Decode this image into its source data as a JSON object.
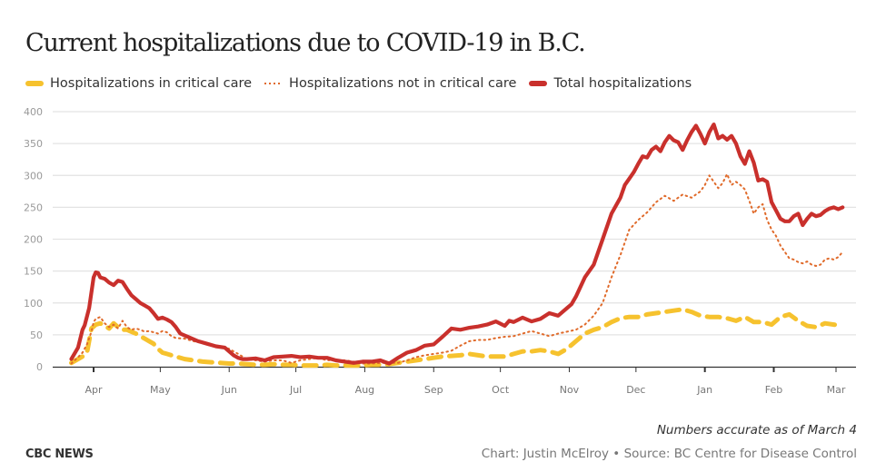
{
  "header": {
    "title": "Current hospitalizations due to COVID-19 in B.C."
  },
  "legend": [
    {
      "label": "Hospitalizations in critical care",
      "color": "#f6c22e",
      "style": "dashed"
    },
    {
      "label": "Hospitalizations not in critical care",
      "color": "#e06a2a",
      "style": "dotted"
    },
    {
      "label": "Total hospitalizations",
      "color": "#c9302c",
      "style": "solid"
    }
  ],
  "footer": {
    "note": "Numbers accurate as of March 4",
    "brand": "CBC NEWS",
    "credit": "Chart: Justin McElroy • Source: BC Centre for Disease Control"
  },
  "chart_data": {
    "type": "line",
    "title": "Current hospitalizations due to COVID-19 in B.C.",
    "xlabel": "",
    "ylabel": "",
    "x_unit": "days since 2020-03-01",
    "x_range": [
      21,
      368
    ],
    "ylim": [
      0,
      400
    ],
    "yticks": [
      0,
      50,
      100,
      150,
      200,
      250,
      300,
      350,
      400
    ],
    "xticks": [
      {
        "label": "Apr",
        "day": 31
      },
      {
        "label": "May",
        "day": 61
      },
      {
        "label": "Jun",
        "day": 92
      },
      {
        "label": "Jul",
        "day": 122
      },
      {
        "label": "Aug",
        "day": 153
      },
      {
        "label": "Sep",
        "day": 184
      },
      {
        "label": "Oct",
        "day": 214
      },
      {
        "label": "Nov",
        "day": 245
      },
      {
        "label": "Dec",
        "day": 275
      },
      {
        "label": "Jan",
        "day": 306
      },
      {
        "label": "Feb",
        "day": 337
      },
      {
        "label": "Mar",
        "day": 365
      }
    ],
    "grid": true,
    "legend_position": "top-left",
    "series": [
      {
        "name": "Total hospitalizations",
        "color": "#c9302c",
        "x": [
          21,
          24,
          26,
          27,
          29,
          31,
          32,
          33,
          34,
          36,
          38,
          40,
          42,
          44,
          46,
          48,
          50,
          52,
          54,
          56,
          58,
          60,
          62,
          64,
          66,
          68,
          70,
          74,
          78,
          82,
          86,
          90,
          94,
          96,
          98,
          100,
          104,
          108,
          112,
          116,
          120,
          124,
          128,
          132,
          136,
          140,
          144,
          148,
          152,
          156,
          160,
          164,
          168,
          172,
          176,
          180,
          184,
          188,
          192,
          196,
          200,
          204,
          208,
          212,
          216,
          218,
          220,
          224,
          228,
          232,
          236,
          240,
          244,
          246,
          248,
          252,
          256,
          260,
          264,
          268,
          270,
          272,
          274,
          276,
          278,
          280,
          282,
          284,
          286,
          288,
          290,
          292,
          294,
          296,
          298,
          300,
          302,
          304,
          306,
          308,
          310,
          312,
          314,
          316,
          318,
          320,
          322,
          324,
          326,
          328,
          330,
          332,
          334,
          336,
          338,
          340,
          342,
          344,
          346,
          348,
          350,
          352,
          354,
          356,
          358,
          360,
          362,
          364,
          366,
          368
        ],
        "values": [
          12,
          30,
          58,
          65,
          92,
          140,
          148,
          147,
          140,
          138,
          132,
          128,
          135,
          133,
          122,
          112,
          106,
          100,
          96,
          92,
          84,
          75,
          77,
          74,
          70,
          62,
          52,
          46,
          40,
          36,
          32,
          30,
          18,
          14,
          12,
          12,
          13,
          10,
          15,
          16,
          17,
          15,
          16,
          14,
          14,
          10,
          8,
          6,
          8,
          8,
          10,
          5,
          14,
          22,
          26,
          33,
          35,
          47,
          60,
          58,
          61,
          63,
          66,
          71,
          64,
          72,
          70,
          77,
          71,
          75,
          84,
          80,
          92,
          98,
          110,
          140,
          160,
          200,
          240,
          265,
          285,
          295,
          305,
          318,
          330,
          328,
          340,
          345,
          338,
          352,
          362,
          355,
          352,
          340,
          355,
          368,
          378,
          365,
          350,
          368,
          380,
          358,
          362,
          356,
          362,
          350,
          330,
          318,
          338,
          320,
          292,
          294,
          290,
          258,
          245,
          232,
          228,
          228,
          236,
          240,
          222,
          232,
          240,
          236,
          238,
          244,
          248,
          250,
          247,
          250
        ],
        "smooth_note": "approximate trace read from chart"
      },
      {
        "name": "Hospitalizations not in critical care",
        "color": "#e06a2a",
        "x": [
          21,
          24,
          26,
          28,
          30,
          31,
          32,
          34,
          36,
          38,
          40,
          42,
          44,
          46,
          48,
          50,
          52,
          54,
          56,
          58,
          60,
          62,
          64,
          66,
          68,
          72,
          76,
          80,
          84,
          88,
          92,
          96,
          100,
          104,
          108,
          112,
          116,
          120,
          124,
          128,
          132,
          136,
          140,
          144,
          148,
          152,
          156,
          160,
          164,
          168,
          172,
          176,
          180,
          184,
          188,
          192,
          196,
          200,
          204,
          208,
          212,
          216,
          220,
          224,
          228,
          232,
          236,
          240,
          244,
          248,
          252,
          256,
          260,
          264,
          268,
          272,
          276,
          280,
          284,
          288,
          292,
          296,
          300,
          304,
          306,
          308,
          310,
          312,
          314,
          316,
          318,
          320,
          322,
          324,
          326,
          328,
          330,
          332,
          334,
          336,
          338,
          340,
          342,
          344,
          346,
          348,
          350,
          352,
          354,
          356,
          358,
          360,
          362,
          364,
          366,
          368
        ],
        "values": [
          5,
          15,
          22,
          35,
          55,
          70,
          75,
          78,
          68,
          62,
          66,
          60,
          72,
          62,
          58,
          60,
          58,
          55,
          56,
          54,
          52,
          56,
          54,
          48,
          45,
          44,
          40,
          37,
          34,
          32,
          28,
          20,
          12,
          10,
          8,
          10,
          10,
          6,
          10,
          12,
          14,
          10,
          11,
          10,
          8,
          5,
          5,
          6,
          6,
          6,
          10,
          15,
          18,
          20,
          22,
          25,
          33,
          40,
          42,
          42,
          45,
          47,
          48,
          52,
          56,
          52,
          48,
          52,
          55,
          58,
          66,
          80,
          100,
          140,
          175,
          215,
          230,
          242,
          258,
          268,
          260,
          270,
          265,
          275,
          285,
          300,
          290,
          280,
          288,
          302,
          285,
          290,
          285,
          278,
          260,
          240,
          250,
          255,
          230,
          215,
          205,
          190,
          180,
          170,
          168,
          164,
          162,
          165,
          160,
          158,
          160,
          168,
          170,
          168,
          172,
          180
        ],
        "smooth_note": "approximate trace read from chart"
      },
      {
        "name": "Hospitalizations in critical care",
        "color": "#f6c22e",
        "x": [
          21,
          24,
          26,
          28,
          30,
          32,
          34,
          36,
          38,
          40,
          42,
          44,
          46,
          48,
          50,
          52,
          54,
          56,
          58,
          60,
          62,
          64,
          68,
          72,
          76,
          80,
          84,
          88,
          92,
          96,
          100,
          104,
          108,
          112,
          116,
          120,
          124,
          128,
          132,
          136,
          140,
          144,
          148,
          152,
          156,
          160,
          164,
          168,
          172,
          176,
          180,
          184,
          188,
          192,
          196,
          200,
          204,
          208,
          212,
          216,
          220,
          224,
          228,
          232,
          236,
          240,
          244,
          248,
          252,
          256,
          260,
          264,
          268,
          272,
          276,
          280,
          284,
          288,
          292,
          296,
          300,
          304,
          308,
          312,
          316,
          320,
          324,
          328,
          332,
          336,
          340,
          344,
          348,
          352,
          356,
          360,
          364,
          368
        ],
        "values": [
          6,
          12,
          16,
          22,
          60,
          66,
          68,
          64,
          60,
          68,
          62,
          58,
          58,
          55,
          52,
          48,
          44,
          40,
          36,
          28,
          22,
          20,
          16,
          12,
          10,
          8,
          7,
          6,
          5,
          5,
          4,
          3,
          3,
          4,
          3,
          3,
          2,
          2,
          2,
          3,
          2,
          2,
          2,
          2,
          3,
          3,
          4,
          6,
          8,
          10,
          12,
          14,
          16,
          17,
          18,
          20,
          18,
          16,
          16,
          16,
          20,
          24,
          24,
          26,
          24,
          20,
          28,
          40,
          52,
          58,
          62,
          70,
          76,
          78,
          78,
          82,
          84,
          86,
          88,
          90,
          86,
          80,
          78,
          78,
          76,
          72,
          78,
          70,
          70,
          66,
          78,
          82,
          72,
          64,
          62,
          68,
          66,
          64
        ]
      }
    ]
  }
}
